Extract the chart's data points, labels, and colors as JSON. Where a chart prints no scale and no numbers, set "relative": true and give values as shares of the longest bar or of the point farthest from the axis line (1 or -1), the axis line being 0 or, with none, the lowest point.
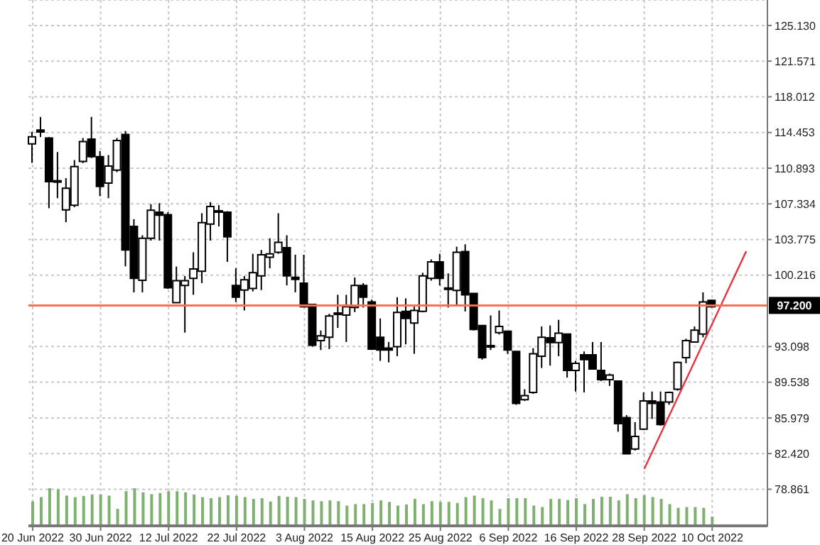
{
  "chart_data": [
    {
      "type": "candlestick",
      "categories": [
        "20 Jun 2022",
        null,
        null,
        null,
        null,
        null,
        null,
        null,
        "30 Jun 2022",
        null,
        null,
        null,
        null,
        null,
        null,
        null,
        "12 Jul 2022",
        null,
        null,
        null,
        null,
        null,
        null,
        null,
        "22 Jul 2022",
        null,
        null,
        null,
        null,
        null,
        null,
        null,
        "3 Aug 2022",
        null,
        null,
        null,
        null,
        null,
        null,
        null,
        "15 Aug 2022",
        null,
        null,
        null,
        null,
        null,
        null,
        null,
        "25 Aug 2022",
        null,
        null,
        null,
        null,
        null,
        null,
        null,
        "6 Sep 2022",
        null,
        null,
        null,
        null,
        null,
        null,
        null,
        "16 Sep 2022",
        null,
        null,
        null,
        null,
        null,
        null,
        null,
        "28 Sep 2022",
        null,
        null,
        null,
        null,
        null,
        null,
        null,
        "10 Oct 2022",
        null,
        null,
        null,
        null,
        null,
        null
      ],
      "ohlc": [
        [
          113.31,
          114.5,
          111.43,
          114.02
        ],
        [
          114.7,
          116.0,
          114.0,
          114.5
        ],
        [
          113.9,
          114.0,
          106.9,
          109.55
        ],
        [
          109.6,
          112.5,
          107.9,
          109.5
        ],
        [
          106.73,
          109.9,
          105.5,
          108.9
        ],
        [
          107.2,
          111.7,
          107.0,
          111.05
        ],
        [
          111.57,
          113.9,
          111.4,
          113.55
        ],
        [
          113.8,
          116.0,
          111.9,
          112.04
        ],
        [
          112.04,
          112.6,
          108.1,
          109.07
        ],
        [
          109.4,
          112.2,
          107.9,
          111.1
        ],
        [
          110.7,
          113.9,
          110.5,
          113.65
        ],
        [
          114.26,
          114.6,
          101.1,
          102.74
        ],
        [
          105.08,
          105.8,
          98.5,
          99.9
        ],
        [
          99.7,
          104.2,
          98.5,
          103.9
        ],
        [
          103.9,
          107.3,
          103.67,
          106.7
        ],
        [
          106.5,
          107.4,
          103.67,
          106.2
        ],
        [
          106.25,
          106.5,
          98.85,
          98.96
        ],
        [
          97.48,
          101.08,
          97.48,
          99.67
        ],
        [
          99.2,
          100.13,
          94.49,
          99.67
        ],
        [
          99.9,
          102.5,
          98.26,
          100.84
        ],
        [
          100.6,
          106.4,
          99.43,
          105.46
        ],
        [
          105.32,
          107.5,
          103.67,
          107.06
        ],
        [
          106.6,
          107.2,
          105.08,
          106.5
        ],
        [
          106.5,
          106.6,
          101.55,
          104.05
        ],
        [
          99.19,
          100.9,
          97.55,
          98.02
        ],
        [
          98.73,
          100.13,
          96.7,
          99.76
        ],
        [
          98.9,
          102.35,
          98.6,
          100.46
        ],
        [
          100.14,
          102.73,
          98.73,
          102.26
        ],
        [
          102.0,
          103.9,
          100.9,
          102.35
        ],
        [
          102.5,
          106.4,
          102.35,
          103.5
        ],
        [
          102.96,
          104.2,
          99.2,
          100.14
        ],
        [
          100.0,
          102.26,
          98.5,
          99.8
        ],
        [
          99.43,
          102.26,
          96.99,
          97.07
        ],
        [
          97.3,
          97.3,
          93.08,
          93.22
        ],
        [
          93.68,
          94.7,
          92.75,
          94.16
        ],
        [
          94.03,
          96.37,
          92.85,
          96.15
        ],
        [
          96.4,
          98.26,
          94.96,
          96.3
        ],
        [
          96.23,
          98.26,
          93.55,
          97.07
        ],
        [
          96.99,
          99.99,
          96.53,
          99.19
        ],
        [
          99.19,
          99.43,
          96.99,
          98.02
        ],
        [
          97.55,
          97.78,
          92.75,
          92.84
        ],
        [
          94.02,
          95.9,
          91.67,
          92.75
        ],
        [
          92.94,
          93.55,
          91.52,
          92.75
        ],
        [
          93.08,
          98.02,
          92.14,
          96.51
        ],
        [
          96.6,
          97.9,
          93.32,
          95.9
        ],
        [
          95.44,
          97.07,
          92.37,
          96.7
        ],
        [
          96.6,
          100.46,
          96.51,
          100.14
        ],
        [
          99.9,
          101.79,
          99.67,
          101.55
        ],
        [
          101.55,
          102.35,
          99.19,
          99.9
        ],
        [
          98.9,
          100.4,
          96.99,
          98.8
        ],
        [
          98.7,
          103.06,
          97.3,
          102.5
        ],
        [
          102.58,
          103.3,
          96.6,
          98.26
        ],
        [
          98.4,
          98.4,
          94.7,
          94.8
        ],
        [
          95.2,
          95.2,
          91.8,
          91.99
        ],
        [
          93.1,
          96.2,
          92.75,
          93.05
        ],
        [
          94.49,
          96.7,
          94.3,
          95.1
        ],
        [
          94.63,
          94.63,
          92.37,
          92.75
        ],
        [
          92.61,
          92.61,
          87.29,
          87.43
        ],
        [
          87.8,
          88.84,
          87.67,
          88.2
        ],
        [
          88.52,
          92.94,
          88.38,
          92.37
        ],
        [
          92.13,
          95.1,
          90.96,
          94.02
        ],
        [
          93.97,
          95.2,
          91.2,
          93.5
        ],
        [
          93.5,
          95.76,
          92.13,
          94.44
        ],
        [
          94.35,
          94.35,
          90.0,
          90.72
        ],
        [
          90.72,
          91.67,
          88.61,
          91.43
        ],
        [
          92.27,
          92.61,
          88.52,
          91.8
        ],
        [
          92.27,
          93.55,
          90.86,
          90.86
        ],
        [
          90.72,
          93.55,
          89.65,
          89.79
        ],
        [
          89.79,
          90.4,
          89.17,
          90.26
        ],
        [
          89.65,
          89.65,
          84.6,
          85.41
        ],
        [
          86.0,
          86.26,
          82.39,
          82.39
        ],
        [
          82.87,
          85.55,
          82.73,
          84.13
        ],
        [
          84.85,
          88.52,
          84.76,
          87.67
        ],
        [
          87.67,
          88.61,
          85.87,
          87.43
        ],
        [
          87.57,
          88.61,
          85.21,
          85.31
        ],
        [
          87.57,
          88.61,
          87.29,
          88.52
        ],
        [
          88.84,
          91.6,
          88.7,
          91.52
        ],
        [
          91.99,
          93.88,
          91.43,
          93.68
        ],
        [
          93.55,
          95.1,
          93.55,
          94.73
        ],
        [
          94.35,
          98.5,
          94.02,
          97.55
        ],
        [
          97.7,
          97.78,
          96.99,
          97.07
        ],
        null,
        null,
        null,
        null,
        null,
        null
      ],
      "series": [
        {
          "type": "line",
          "color": "#e8333c",
          "values": [
            null,
            null,
            null,
            null,
            null,
            null,
            null,
            null,
            null,
            null,
            null,
            null,
            null,
            null,
            null,
            null,
            null,
            null,
            null,
            null,
            null,
            null,
            null,
            null,
            null,
            null,
            null,
            null,
            null,
            null,
            null,
            null,
            null,
            null,
            null,
            null,
            null,
            null,
            null,
            null,
            null,
            null,
            null,
            null,
            null,
            null,
            null,
            null,
            null,
            null,
            null,
            null,
            null,
            null,
            null,
            null,
            null,
            null,
            null,
            null,
            null,
            null,
            null,
            null,
            null,
            null,
            null,
            null,
            null,
            null,
            null,
            null,
            80.9,
            null,
            null,
            null,
            null,
            null,
            null,
            null,
            null,
            null,
            null,
            null,
            102.6,
            null,
            null
          ]
        }
      ],
      "ylim": [
        75.14,
        127.67
      ],
      "yticks": [
        {
          "value": 78.861,
          "label": "78.861"
        },
        {
          "value": 82.42,
          "label": "82.420"
        },
        {
          "value": 85.979,
          "label": "85.979"
        },
        {
          "value": 89.538,
          "label": "89.538"
        },
        {
          "value": 93.098,
          "label": "93.098"
        },
        {
          "value": 100.216,
          "label": "100.216"
        },
        {
          "value": 103.775,
          "label": "103.775"
        },
        {
          "value": 107.334,
          "label": "107.334"
        },
        {
          "value": 110.893,
          "label": "110.893"
        },
        {
          "value": 114.453,
          "label": "114.453"
        },
        {
          "value": 118.012,
          "label": "118.012"
        },
        {
          "value": 121.571,
          "label": "121.571"
        },
        {
          "value": 125.13,
          "label": "125.130"
        }
      ],
      "ref_lines": [
        {
          "axis": "y",
          "value": 97.2,
          "label": "97.200",
          "color": "#f4734f"
        }
      ],
      "grid": true
    },
    {
      "type": "bar",
      "relative": true,
      "color": "#80b070",
      "categories": [
        null,
        null,
        null,
        null,
        null,
        null,
        null,
        null,
        null,
        null,
        null,
        null,
        null,
        null,
        null,
        null,
        null,
        null,
        null,
        null,
        null,
        null,
        null,
        null,
        null,
        null,
        null,
        null,
        null,
        null,
        null,
        null,
        null,
        null,
        null,
        null,
        null,
        null,
        null,
        null,
        null,
        null,
        null,
        null,
        null,
        null,
        null,
        null,
        null,
        null,
        null,
        null,
        null,
        null,
        null,
        null,
        null,
        null,
        null,
        null,
        null,
        null,
        null,
        null,
        null,
        null,
        null,
        null,
        null,
        null,
        null,
        null,
        null,
        null,
        null,
        null,
        null,
        null,
        null,
        null,
        null,
        null,
        null,
        null,
        null,
        null,
        null
      ],
      "values": [
        0.64,
        0.76,
        1,
        0.97,
        0.8,
        0.76,
        0.79,
        0.83,
        0.83,
        0.8,
        0.44,
        0.92,
        1,
        0.89,
        0.84,
        0.87,
        0.92,
        0.92,
        0.89,
        0.83,
        0.76,
        0.73,
        0.76,
        0.81,
        0.79,
        0.76,
        0.71,
        0.73,
        0.64,
        0.79,
        0.77,
        0.76,
        0.71,
        0.67,
        0.65,
        0.67,
        0.65,
        0.53,
        0.57,
        0.57,
        0.6,
        0.67,
        0.63,
        0.53,
        0.56,
        0.71,
        0.57,
        0.65,
        0.63,
        0.63,
        0.6,
        0.76,
        0.8,
        0.73,
        0.67,
        0.44,
        0.73,
        0.73,
        0.73,
        0.53,
        0.49,
        0.71,
        0.71,
        0.68,
        0.73,
        0.57,
        0.71,
        0.77,
        0.77,
        0.67,
        0.84,
        0.73,
        0.81,
        0.76,
        0.71,
        0.57,
        0.47,
        0.49,
        0.49,
        0.47,
        0.23,
        null,
        null,
        null,
        null,
        null,
        null
      ]
    }
  ]
}
